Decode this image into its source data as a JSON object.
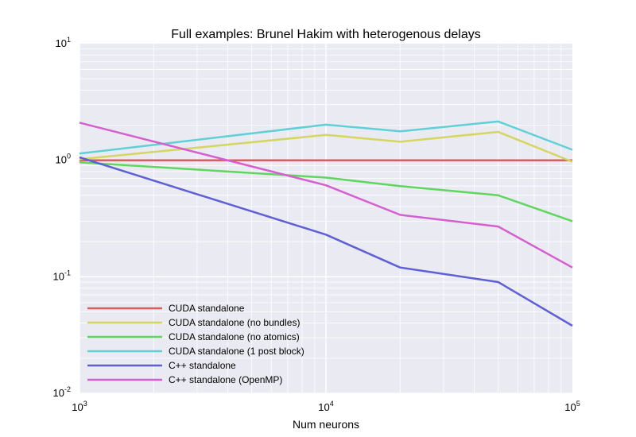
{
  "chart_data": {
    "type": "line",
    "title": "Full examples: Brunel Hakim with heterogenous delays",
    "xlabel": "Num neurons",
    "ylabel": "",
    "xscale": "log",
    "yscale": "log",
    "xlim": [
      1000,
      100000
    ],
    "ylim": [
      0.01,
      10
    ],
    "grid": true,
    "legend_position": "lower-left",
    "x_ticks": [
      {
        "base": "10",
        "exp": "3",
        "value": 1000
      },
      {
        "base": "10",
        "exp": "4",
        "value": 10000
      },
      {
        "base": "10",
        "exp": "5",
        "value": 100000
      }
    ],
    "y_ticks": [
      {
        "base": "10",
        "exp": "-2",
        "value": 0.01
      },
      {
        "base": "10",
        "exp": "-1",
        "value": 0.1
      },
      {
        "base": "10",
        "exp": "0",
        "value": 1
      },
      {
        "base": "10",
        "exp": "1",
        "value": 10
      }
    ],
    "x": [
      1000,
      10000,
      20000,
      50000,
      100000
    ],
    "series": [
      {
        "name": "CUDA standalone",
        "color": "#d65f5f",
        "values": [
          1.0,
          1.0,
          1.0,
          1.0,
          1.0
        ]
      },
      {
        "name": "CUDA standalone (no bundles)",
        "color": "#d5d65f",
        "values": [
          1.02,
          1.65,
          1.44,
          1.75,
          0.97
        ]
      },
      {
        "name": "CUDA standalone (no atomics)",
        "color": "#5fd65f",
        "values": [
          0.96,
          0.71,
          0.6,
          0.5,
          0.3
        ]
      },
      {
        "name": "CUDA standalone (1 post block)",
        "color": "#5fd0d6",
        "values": [
          1.14,
          2.02,
          1.77,
          2.15,
          1.23
        ]
      },
      {
        "name": "C++ standalone",
        "color": "#5f5fd6",
        "values": [
          1.06,
          0.23,
          0.12,
          0.09,
          0.038
        ]
      },
      {
        "name": "C++ standalone (OpenMP)",
        "color": "#d65fd0",
        "values": [
          2.1,
          0.61,
          0.34,
          0.27,
          0.12
        ]
      }
    ]
  }
}
